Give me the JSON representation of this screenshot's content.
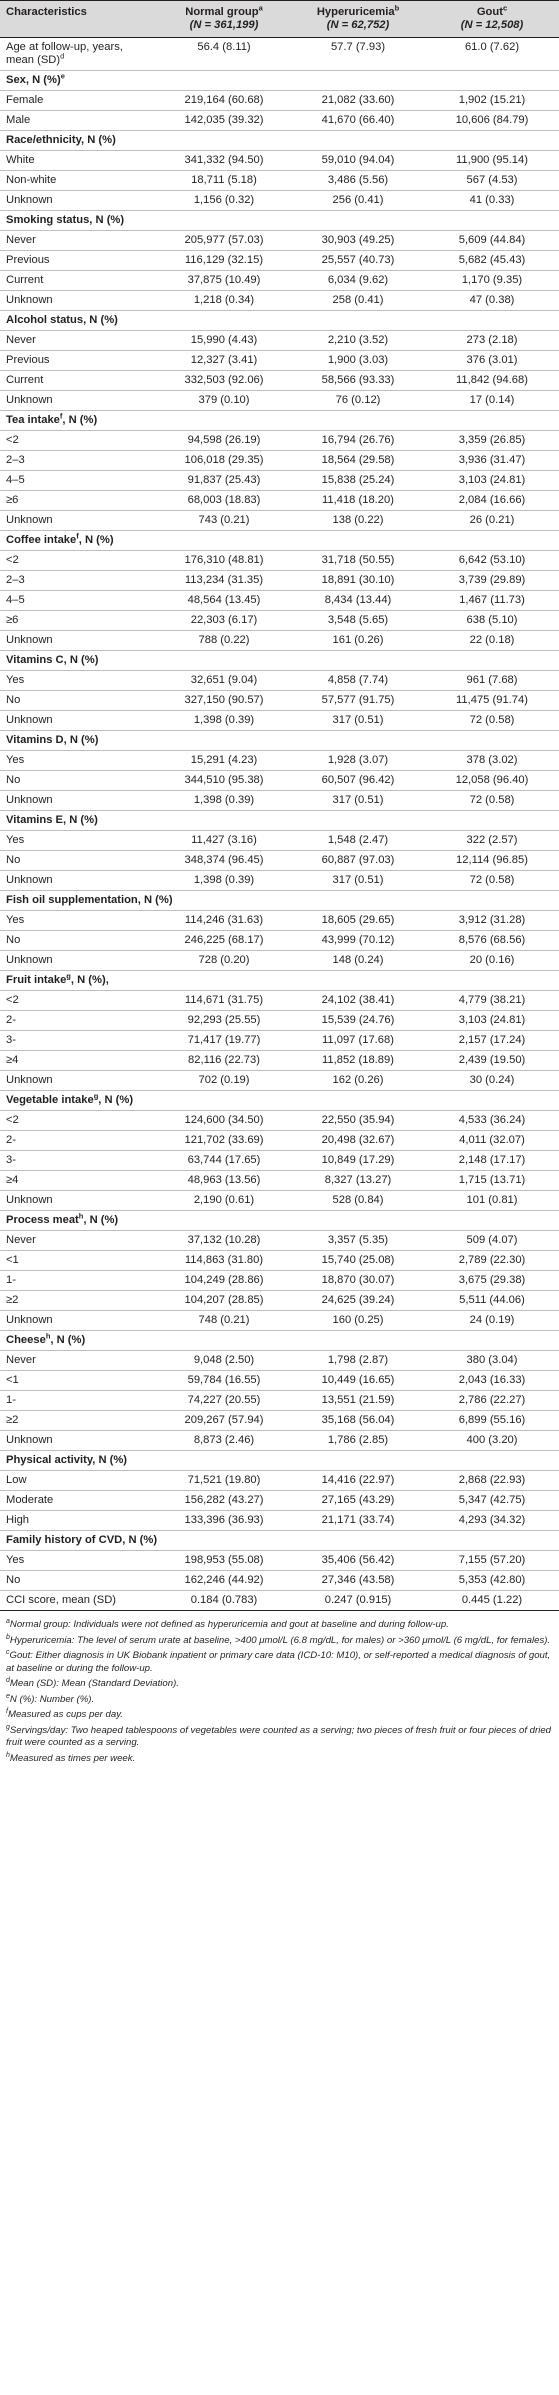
{
  "header": {
    "characteristics": "Characteristics",
    "groups": [
      {
        "name": "Normal group",
        "sup": "a",
        "n": "(N = 361,199)"
      },
      {
        "name": "Hyperuricemia",
        "sup": "b",
        "n": "(N = 62,752)"
      },
      {
        "name": "Gout",
        "sup": "c",
        "n": "(N = 12,508)"
      }
    ]
  },
  "rows": [
    {
      "type": "row",
      "label": "Age at follow-up, years, mean (SD)",
      "sup": "d",
      "values": [
        "56.4 (8.11)",
        "57.7 (7.93)",
        "61.0 (7.62)"
      ]
    },
    {
      "type": "section",
      "label": "Sex, N (%)",
      "sup": "e"
    },
    {
      "type": "row",
      "label": "Female",
      "values": [
        "219,164 (60.68)",
        "21,082 (33.60)",
        "1,902 (15.21)"
      ]
    },
    {
      "type": "row",
      "label": "Male",
      "values": [
        "142,035 (39.32)",
        "41,670 (66.40)",
        "10,606 (84.79)"
      ]
    },
    {
      "type": "section",
      "label": "Race/ethnicity, N (%)"
    },
    {
      "type": "row",
      "label": "White",
      "values": [
        "341,332 (94.50)",
        "59,010 (94.04)",
        "11,900 (95.14)"
      ]
    },
    {
      "type": "row",
      "label": "Non-white",
      "values": [
        "18,711 (5.18)",
        "3,486 (5.56)",
        "567 (4.53)"
      ]
    },
    {
      "type": "row",
      "label": "Unknown",
      "values": [
        "1,156 (0.32)",
        "256 (0.41)",
        "41 (0.33)"
      ]
    },
    {
      "type": "section",
      "label": "Smoking status, N (%)"
    },
    {
      "type": "row",
      "label": "Never",
      "values": [
        "205,977 (57.03)",
        "30,903 (49.25)",
        "5,609 (44.84)"
      ]
    },
    {
      "type": "row",
      "label": "Previous",
      "values": [
        "116,129 (32.15)",
        "25,557 (40.73)",
        "5,682 (45.43)"
      ]
    },
    {
      "type": "row",
      "label": "Current",
      "values": [
        "37,875 (10.49)",
        "6,034 (9.62)",
        "1,170 (9.35)"
      ]
    },
    {
      "type": "row",
      "label": "Unknown",
      "values": [
        "1,218 (0.34)",
        "258 (0.41)",
        "47 (0.38)"
      ]
    },
    {
      "type": "section",
      "label": "Alcohol status, N (%)"
    },
    {
      "type": "row",
      "label": "Never",
      "values": [
        "15,990 (4.43)",
        "2,210 (3.52)",
        "273 (2.18)"
      ]
    },
    {
      "type": "row",
      "label": "Previous",
      "values": [
        "12,327 (3.41)",
        "1,900 (3.03)",
        "376 (3.01)"
      ]
    },
    {
      "type": "row",
      "label": "Current",
      "values": [
        "332,503 (92.06)",
        "58,566 (93.33)",
        "11,842 (94.68)"
      ]
    },
    {
      "type": "row",
      "label": "Unknown",
      "values": [
        "379 (0.10)",
        "76 (0.12)",
        "17 (0.14)"
      ]
    },
    {
      "type": "section",
      "label": "Tea intake",
      "sup": "f",
      "suffix": ", N (%)"
    },
    {
      "type": "row",
      "label": "<2",
      "values": [
        "94,598 (26.19)",
        "16,794 (26.76)",
        "3,359 (26.85)"
      ]
    },
    {
      "type": "row",
      "label": "2–3",
      "values": [
        "106,018 (29.35)",
        "18,564 (29.58)",
        "3,936 (31.47)"
      ]
    },
    {
      "type": "row",
      "label": "4–5",
      "values": [
        "91,837 (25.43)",
        "15,838 (25.24)",
        "3,103 (24.81)"
      ]
    },
    {
      "type": "row",
      "label": "≥6",
      "values": [
        "68,003 (18.83)",
        "11,418 (18.20)",
        "2,084 (16.66)"
      ]
    },
    {
      "type": "row",
      "label": "Unknown",
      "values": [
        "743 (0.21)",
        "138 (0.22)",
        "26 (0.21)"
      ]
    },
    {
      "type": "section",
      "label": "Coffee intake",
      "sup": "f",
      "suffix": ", N (%)"
    },
    {
      "type": "row",
      "label": "<2",
      "values": [
        "176,310 (48.81)",
        "31,718 (50.55)",
        "6,642 (53.10)"
      ]
    },
    {
      "type": "row",
      "label": "2–3",
      "values": [
        "113,234 (31.35)",
        "18,891 (30.10)",
        "3,739 (29.89)"
      ]
    },
    {
      "type": "row",
      "label": "4–5",
      "values": [
        "48,564 (13.45)",
        "8,434 (13.44)",
        "1,467 (11.73)"
      ]
    },
    {
      "type": "row",
      "label": "≥6",
      "values": [
        "22,303 (6.17)",
        "3,548 (5.65)",
        "638 (5.10)"
      ]
    },
    {
      "type": "row",
      "label": "Unknown",
      "values": [
        "788 (0.22)",
        "161 (0.26)",
        "22 (0.18)"
      ]
    },
    {
      "type": "section",
      "label": "Vitamins C, N (%)"
    },
    {
      "type": "row",
      "label": "Yes",
      "values": [
        "32,651 (9.04)",
        "4,858 (7.74)",
        "961 (7.68)"
      ]
    },
    {
      "type": "row",
      "label": "No",
      "values": [
        "327,150 (90.57)",
        "57,577 (91.75)",
        "11,475 (91.74)"
      ]
    },
    {
      "type": "row",
      "label": "Unknown",
      "values": [
        "1,398 (0.39)",
        "317 (0.51)",
        "72 (0.58)"
      ]
    },
    {
      "type": "section",
      "label": "Vitamins D, N (%)"
    },
    {
      "type": "row",
      "label": "Yes",
      "values": [
        "15,291 (4.23)",
        "1,928 (3.07)",
        "378 (3.02)"
      ]
    },
    {
      "type": "row",
      "label": "No",
      "values": [
        "344,510 (95.38)",
        "60,507 (96.42)",
        "12,058 (96.40)"
      ]
    },
    {
      "type": "row",
      "label": "Unknown",
      "values": [
        "1,398 (0.39)",
        "317 (0.51)",
        "72 (0.58)"
      ]
    },
    {
      "type": "section",
      "label": "Vitamins E, N (%)"
    },
    {
      "type": "row",
      "label": "Yes",
      "values": [
        "11,427 (3.16)",
        "1,548 (2.47)",
        "322 (2.57)"
      ]
    },
    {
      "type": "row",
      "label": "No",
      "values": [
        "348,374 (96.45)",
        "60,887 (97.03)",
        "12,114 (96.85)"
      ]
    },
    {
      "type": "row",
      "label": "Unknown",
      "values": [
        "1,398 (0.39)",
        "317 (0.51)",
        "72 (0.58)"
      ]
    },
    {
      "type": "section",
      "label": "Fish oil supplementation, N (%)"
    },
    {
      "type": "row",
      "label": "Yes",
      "values": [
        "114,246 (31.63)",
        "18,605 (29.65)",
        "3,912 (31.28)"
      ]
    },
    {
      "type": "row",
      "label": "No",
      "values": [
        "246,225 (68.17)",
        "43,999 (70.12)",
        "8,576 (68.56)"
      ]
    },
    {
      "type": "row",
      "label": "Unknown",
      "values": [
        "728 (0.20)",
        "148 (0.24)",
        "20 (0.16)"
      ]
    },
    {
      "type": "section",
      "label": "Fruit intake",
      "sup": "g",
      "suffix": ", N (%),"
    },
    {
      "type": "row",
      "label": "<2",
      "values": [
        "114,671 (31.75)",
        "24,102 (38.41)",
        "4,779 (38.21)"
      ]
    },
    {
      "type": "row",
      "label": "2-",
      "values": [
        "92,293 (25.55)",
        "15,539 (24.76)",
        "3,103 (24.81)"
      ]
    },
    {
      "type": "row",
      "label": "3-",
      "values": [
        "71,417 (19.77)",
        "11,097 (17.68)",
        "2,157 (17.24)"
      ]
    },
    {
      "type": "row",
      "label": "≥4",
      "values": [
        "82,116 (22.73)",
        "11,852 (18.89)",
        "2,439 (19.50)"
      ]
    },
    {
      "type": "row",
      "label": "Unknown",
      "values": [
        "702 (0.19)",
        "162 (0.26)",
        "30 (0.24)"
      ]
    },
    {
      "type": "section",
      "label": "Vegetable intake",
      "sup": "g",
      "suffix": ", N (%)"
    },
    {
      "type": "row",
      "label": "<2",
      "values": [
        "124,600 (34.50)",
        "22,550 (35.94)",
        "4,533 (36.24)"
      ]
    },
    {
      "type": "row",
      "label": "2-",
      "values": [
        "121,702 (33.69)",
        "20,498 (32.67)",
        "4,011 (32.07)"
      ]
    },
    {
      "type": "row",
      "label": "3-",
      "values": [
        "63,744 (17.65)",
        "10,849 (17.29)",
        "2,148 (17.17)"
      ]
    },
    {
      "type": "row",
      "label": "≥4",
      "values": [
        "48,963 (13.56)",
        "8,327 (13.27)",
        "1,715 (13.71)"
      ]
    },
    {
      "type": "row",
      "label": "Unknown",
      "values": [
        "2,190 (0.61)",
        "528 (0.84)",
        "101 (0.81)"
      ]
    },
    {
      "type": "section",
      "label": "Process meat",
      "sup": "h",
      "suffix": ", N (%)"
    },
    {
      "type": "row",
      "label": "Never",
      "values": [
        "37,132 (10.28)",
        "3,357 (5.35)",
        "509 (4.07)"
      ]
    },
    {
      "type": "row",
      "label": "<1",
      "values": [
        "114,863 (31.80)",
        "15,740 (25.08)",
        "2,789 (22.30)"
      ]
    },
    {
      "type": "row",
      "label": "1-",
      "values": [
        "104,249 (28.86)",
        "18,870 (30.07)",
        "3,675 (29.38)"
      ]
    },
    {
      "type": "row",
      "label": "≥2",
      "values": [
        "104,207 (28.85)",
        "24,625 (39.24)",
        "5,511 (44.06)"
      ]
    },
    {
      "type": "row",
      "label": "Unknown",
      "values": [
        "748 (0.21)",
        "160 (0.25)",
        "24 (0.19)"
      ]
    },
    {
      "type": "section",
      "label": "Cheese",
      "sup": "h",
      "suffix": ", N (%)"
    },
    {
      "type": "row",
      "label": "Never",
      "values": [
        "9,048 (2.50)",
        "1,798 (2.87)",
        "380 (3.04)"
      ]
    },
    {
      "type": "row",
      "label": "<1",
      "values": [
        "59,784 (16.55)",
        "10,449 (16.65)",
        "2,043 (16.33)"
      ]
    },
    {
      "type": "row",
      "label": "1-",
      "values": [
        "74,227 (20.55)",
        "13,551 (21.59)",
        "2,786 (22.27)"
      ]
    },
    {
      "type": "row",
      "label": "≥2",
      "values": [
        "209,267 (57.94)",
        "35,168 (56.04)",
        "6,899 (55.16)"
      ]
    },
    {
      "type": "row",
      "label": "Unknown",
      "values": [
        "8,873 (2.46)",
        "1,786 (2.85)",
        "400 (3.20)"
      ]
    },
    {
      "type": "section",
      "label": "Physical activity, N (%)"
    },
    {
      "type": "row",
      "label": "Low",
      "values": [
        "71,521 (19.80)",
        "14,416 (22.97)",
        "2,868 (22.93)"
      ]
    },
    {
      "type": "row",
      "label": "Moderate",
      "values": [
        "156,282 (43.27)",
        "27,165 (43.29)",
        "5,347 (42.75)"
      ]
    },
    {
      "type": "row",
      "label": "High",
      "values": [
        "133,396 (36.93)",
        "21,171 (33.74)",
        "4,293 (34.32)"
      ]
    },
    {
      "type": "section",
      "label": "Family history of CVD, N (%)"
    },
    {
      "type": "row",
      "label": "Yes",
      "values": [
        "198,953 (55.08)",
        "35,406 (56.42)",
        "7,155 (57.20)"
      ]
    },
    {
      "type": "row",
      "label": "No",
      "values": [
        "162,246 (44.92)",
        "27,346 (43.58)",
        "5,353 (42.80)"
      ]
    },
    {
      "type": "row",
      "label": "CCI score, mean (SD)",
      "values": [
        "0.184 (0.783)",
        "0.247 (0.915)",
        "0.445 (1.22)"
      ]
    }
  ],
  "footnotes": [
    {
      "sup": "a",
      "text": "Normal group: Individuals were not defined as hyperuricemia and gout at baseline and during follow-up."
    },
    {
      "sup": "b",
      "text": "Hyperuricemia: The level of serum urate at baseline, >400 μmol/L (6.8 mg/dL, for males) or >360 μmol/L (6 mg/dL, for females)."
    },
    {
      "sup": "c",
      "text": "Gout: Either diagnosis in UK Biobank inpatient or primary care data (ICD-10: M10), or self-reported a medical diagnosis of gout, at baseline or during the follow-up."
    },
    {
      "sup": "d",
      "text": "Mean (SD): Mean (Standard Deviation)."
    },
    {
      "sup": "e",
      "text": "N (%): Number (%)."
    },
    {
      "sup": "f",
      "text": "Measured as cups per day."
    },
    {
      "sup": "g",
      "text": "Servings/day: Two heaped tablespoons of vegetables were counted as a serving; two pieces of fresh fruit or four pieces of dried fruit were counted as a serving."
    },
    {
      "sup": "h",
      "text": "Measured as times per week."
    }
  ]
}
